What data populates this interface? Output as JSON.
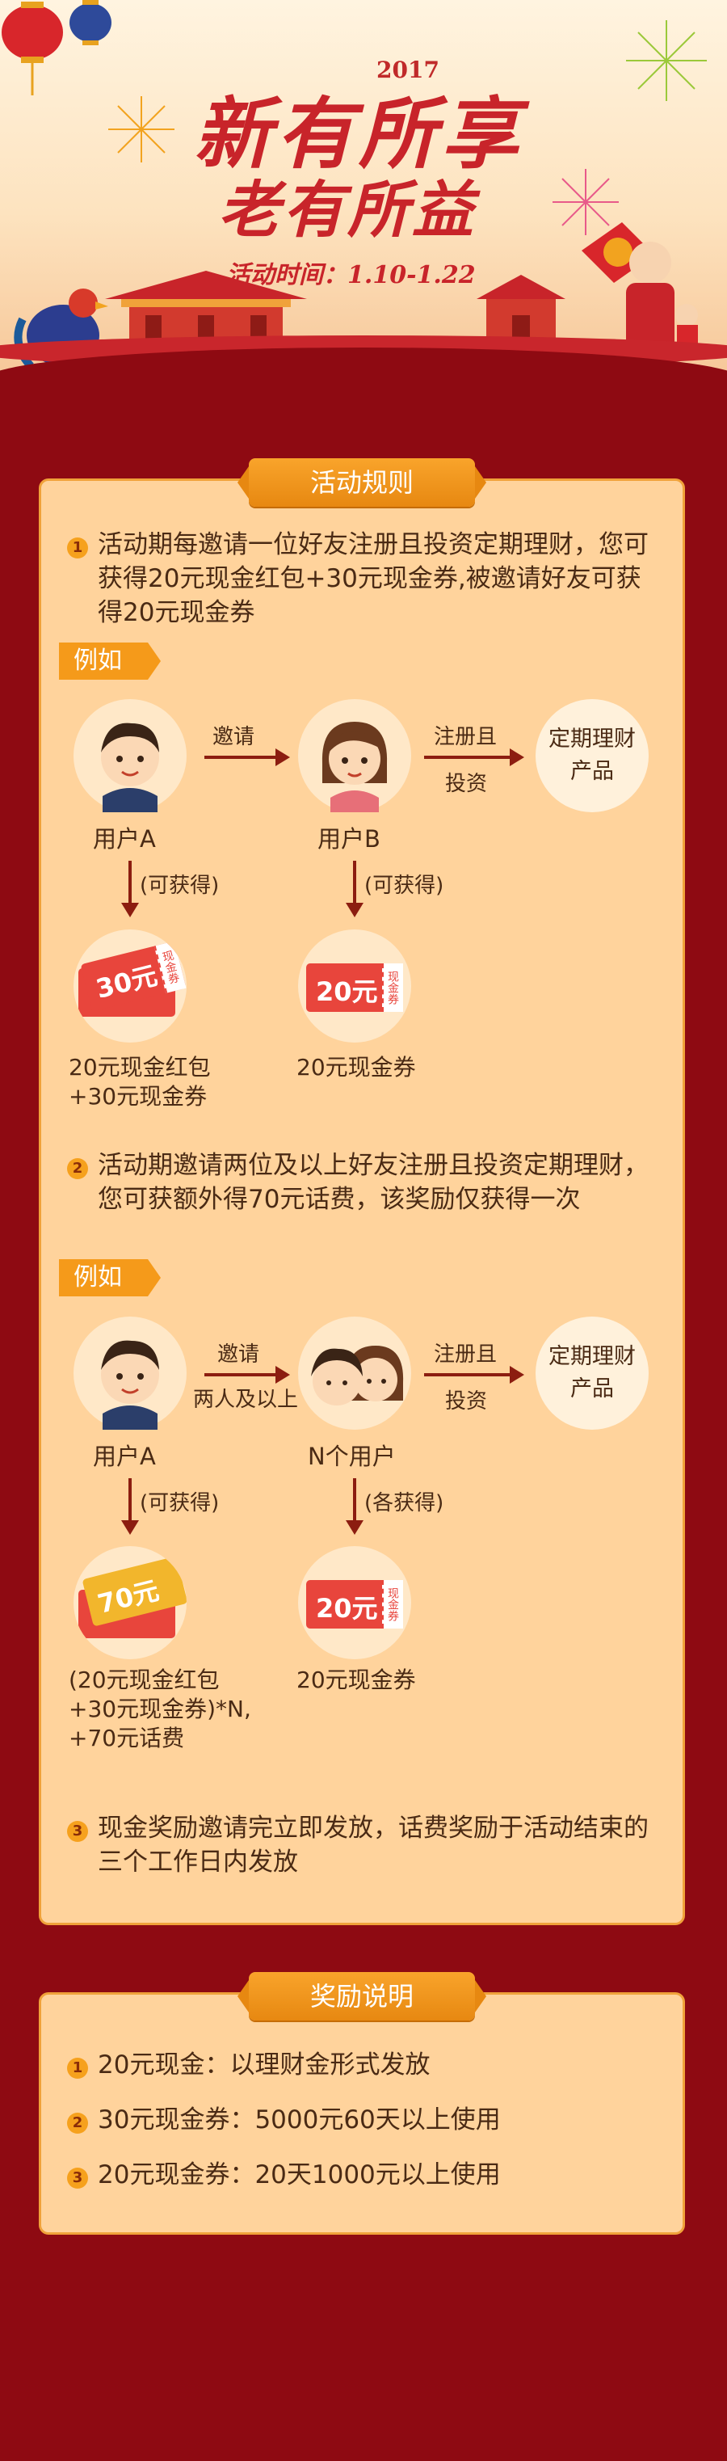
{
  "banner": {
    "year": "2017",
    "title_line1": "新有所享",
    "title_line2": "老有所益",
    "time": "活动时间：1.10-1.22"
  },
  "rules_panel": {
    "title": "活动规则",
    "rule1": {
      "num": "1",
      "text": "活动期每邀请一位好友注册且投资定期理财，您可获得20元现金红包+30元现金券,被邀请好友可获得20元现金券"
    },
    "example1": {
      "tag": "例如",
      "user_a": "用户A",
      "invite": "邀请",
      "user_b": "用户B",
      "register_1": "注册且",
      "register_2": "投资",
      "product_1": "定期理财",
      "product_2": "产品",
      "gain_a": "(可获得)",
      "gain_b": "(可获得)",
      "coupon_a_amount": "30元",
      "coupon_a_side": "现金券",
      "coupon_b_amount": "20元",
      "coupon_b_side": "现金券",
      "reward_a_1": "20元现金红包",
      "reward_a_2": "+30元现金券",
      "reward_b": "20元现金券"
    },
    "rule2": {
      "num": "2",
      "text": "活动期邀请两位及以上好友注册且投资定期理财，您可获额外得70元话费，该奖励仅获得一次"
    },
    "example2": {
      "tag": "例如",
      "user_a": "用户A",
      "invite_1": "邀请",
      "invite_2": "两人及以上",
      "user_n": "N个用户",
      "register_1": "注册且",
      "register_2": "投资",
      "product_1": "定期理财",
      "product_2": "产品",
      "gain_a": "(可获得)",
      "gain_n": "(各获得)",
      "coupon_a_amount": "70元",
      "coupon_n_amount": "20元",
      "coupon_n_side": "现金券",
      "reward_a_1": "(20元现金红包",
      "reward_a_2": "+30元现金券)*N,",
      "reward_a_3": "+70元话费",
      "reward_n": "20元现金券"
    },
    "rule3": {
      "num": "3",
      "text": "现金奖励邀请完立即发放，话费奖励于活动结束的三个工作日内发放"
    }
  },
  "reward_panel": {
    "title": "奖励说明",
    "items": [
      {
        "num": "1",
        "text": "20元现金：以理财金形式发放"
      },
      {
        "num": "2",
        "text": "30元现金券：5000元60天以上使用"
      },
      {
        "num": "3",
        "text": "20元现金券：20天1000元以上使用"
      }
    ]
  }
}
